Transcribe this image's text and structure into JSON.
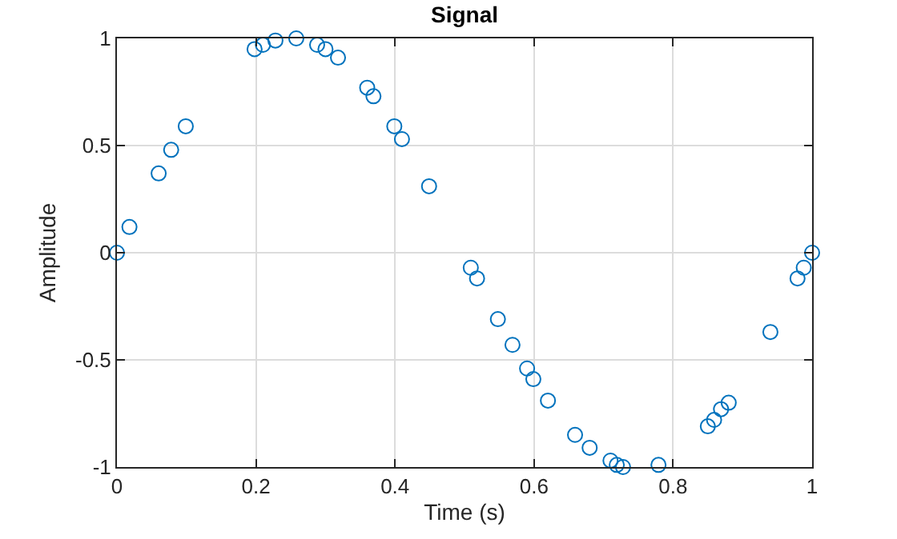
{
  "chart_data": {
    "type": "scatter",
    "title": "Signal",
    "xlabel": "Time (s)",
    "ylabel": "Amplitude",
    "x": [
      0,
      0.018,
      0.06,
      0.078,
      0.099,
      0.198,
      0.21,
      0.228,
      0.258,
      0.288,
      0.3,
      0.318,
      0.36,
      0.369,
      0.399,
      0.41,
      0.449,
      0.509,
      0.518,
      0.548,
      0.569,
      0.59,
      0.599,
      0.62,
      0.659,
      0.68,
      0.71,
      0.719,
      0.728,
      0.779,
      0.85,
      0.859,
      0.869,
      0.88,
      0.94,
      0.979,
      0.988,
      1.0
    ],
    "series": [
      {
        "color": "#0072bd",
        "values": [
          0,
          0.12,
          0.37,
          0.48,
          0.59,
          0.95,
          0.97,
          0.99,
          1.0,
          0.97,
          0.95,
          0.91,
          0.77,
          0.73,
          0.59,
          0.53,
          0.31,
          -0.07,
          -0.12,
          -0.31,
          -0.43,
          -0.54,
          -0.59,
          -0.69,
          -0.85,
          -0.91,
          -0.97,
          -0.99,
          -1.0,
          -0.99,
          -0.81,
          -0.78,
          -0.73,
          -0.7,
          -0.37,
          -0.12,
          -0.07,
          0
        ]
      }
    ],
    "xlim": [
      0,
      1
    ],
    "xticks": [
      0,
      0.2,
      0.4,
      0.6,
      0.8,
      1
    ],
    "ylim": [
      -1,
      1
    ],
    "yticks": [
      -1,
      -0.5,
      0,
      0.5,
      1
    ],
    "grid": true,
    "marker": "circle",
    "legend": false
  }
}
